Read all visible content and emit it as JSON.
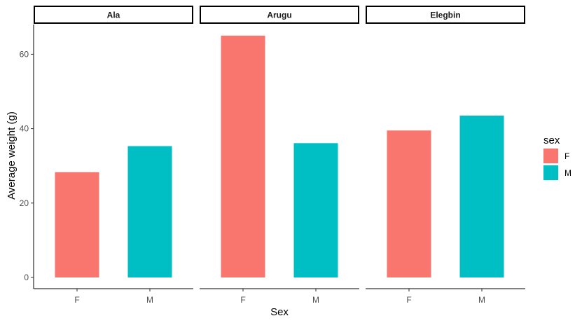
{
  "chart_data": {
    "type": "bar",
    "facet_by": "location",
    "facets": [
      {
        "label": "Ala",
        "categories": [
          "F",
          "M"
        ],
        "values": [
          28.3,
          35.3
        ]
      },
      {
        "label": "Arugu",
        "categories": [
          "F",
          "M"
        ],
        "values": [
          65.0,
          36.1
        ]
      },
      {
        "label": "Elegbin",
        "categories": [
          "F",
          "M"
        ],
        "values": [
          39.5,
          43.5
        ]
      }
    ],
    "xlabel": "Sex",
    "ylabel": "Average weight (g)",
    "ylim": [
      0,
      70
    ],
    "yticks": [
      0,
      20,
      40,
      60
    ],
    "grid": false,
    "legend": {
      "title": "sex",
      "position": "right",
      "entries": [
        {
          "label": "F",
          "color": "#F8766D"
        },
        {
          "label": "M",
          "color": "#00BFC4"
        }
      ]
    }
  }
}
